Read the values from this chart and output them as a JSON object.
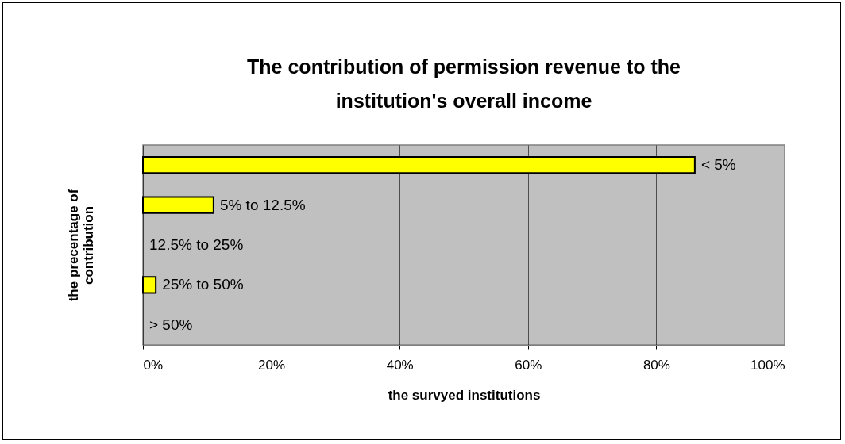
{
  "chart_data": {
    "type": "bar",
    "orientation": "horizontal",
    "title": "The contribution of permission revenue to the institution's overall income",
    "xlabel": "the survyed institutions",
    "ylabel": "the precentage of contribution",
    "categories": [
      "< 5%",
      "5% to 12.5%",
      "12.5% to 25%",
      "25% to 50%",
      "> 50%"
    ],
    "values": [
      86,
      11,
      0,
      2,
      0
    ],
    "color": "#ffff00",
    "xlim": [
      0,
      100
    ],
    "xticks": [
      {
        "value": 0,
        "label": "0%"
      },
      {
        "value": 20,
        "label": "20%"
      },
      {
        "value": 40,
        "label": "40%"
      },
      {
        "value": 60,
        "label": "60%"
      },
      {
        "value": 80,
        "label": "80%"
      },
      {
        "value": 100,
        "label": "100%"
      }
    ],
    "grid": "x",
    "tick_labels": "x"
  }
}
